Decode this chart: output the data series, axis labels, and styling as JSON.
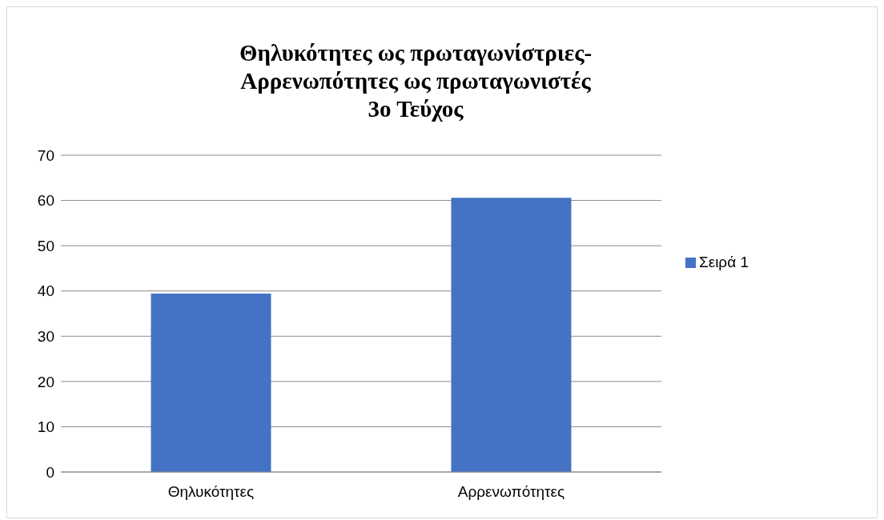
{
  "chart_data": {
    "type": "bar",
    "title": "Θηλυκότητες ως πρωταγωνίστριες-\nΑρρενωπότητες ως πρωταγωνιστές\n3ο Τεύχος",
    "categories": [
      "Θηλυκότητες",
      "Αρρενωπότητες"
    ],
    "series": [
      {
        "name": "Σειρά 1",
        "color": "#4472c4",
        "values": [
          39.4,
          60.6
        ]
      }
    ],
    "ylim": [
      0,
      70
    ],
    "yticks": [
      0,
      10,
      20,
      30,
      40,
      50,
      60,
      70
    ],
    "grid": "y",
    "legend": "right"
  }
}
